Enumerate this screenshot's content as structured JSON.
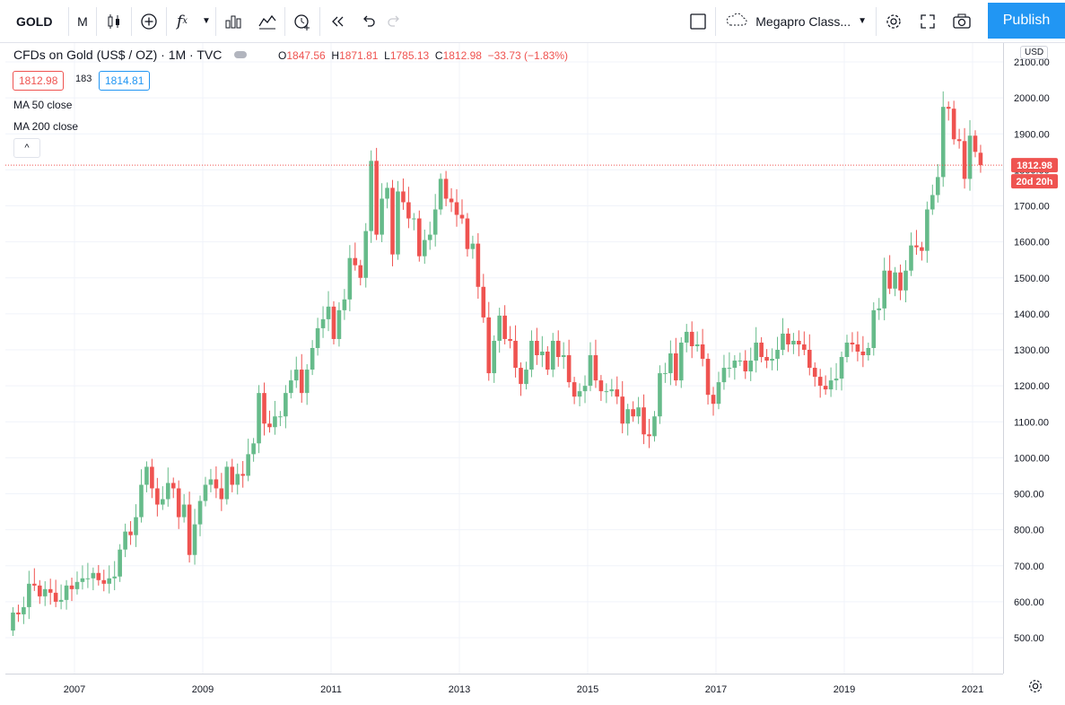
{
  "toolbar": {
    "symbol": "GOLD",
    "interval": "M",
    "icons": [
      "candles-icon",
      "plus-circle-icon",
      "fx-icon",
      "chevron-down-icon",
      "bars-icon",
      "area-icon",
      "alert-icon",
      "replay-icon",
      "undo-icon",
      "redo-icon",
      "square-icon",
      "cloud-icon",
      "gear-icon",
      "fullscreen-icon",
      "camera-icon"
    ],
    "layout_name": "Megapro Class...",
    "publish_label": "Publish"
  },
  "legend": {
    "title": "CFDs on Gold (US$ / OZ) · 1M · TVC",
    "o_key": "O",
    "o_val": "1847.56",
    "h_key": "H",
    "h_val": "1871.81",
    "l_key": "L",
    "l_val": "1785.13",
    "c_key": "C",
    "c_val": "1812.98",
    "change": "−33.73 (−1.83%)",
    "bid": "1812.98",
    "spread": "183",
    "ask": "1814.81",
    "ma1": "MA 50 close",
    "ma2": "MA 200 close",
    "collapse": "^"
  },
  "price_tag": {
    "value": "1812.98",
    "countdown": "20d 20h"
  },
  "currency": "USD",
  "colors": {
    "up": "#26a69a",
    "up_body": "#66bb8a",
    "down": "#ef5350",
    "accent": "#2196f3",
    "grid": "#f0f3fa"
  },
  "chart_data": {
    "type": "candlestick",
    "title": "CFDs on Gold (US$ / OZ) · 1M · TVC",
    "ylim": [
      400,
      2150
    ],
    "y_ticks": [
      500,
      600,
      700,
      800,
      900,
      1000,
      1100,
      1200,
      1300,
      1400,
      1500,
      1600,
      1700,
      1800,
      1900,
      2000,
      2100
    ],
    "y_tick_labels": [
      "500.00",
      "600.00",
      "700.00",
      "800.00",
      "900.00",
      "1000.00",
      "1100.00",
      "1200.00",
      "1300.00",
      "1400.00",
      "1500.00",
      "1600.00",
      "1700.00",
      "1800.00",
      "1900.00",
      "2000.00",
      "2100.00"
    ],
    "x_ticks": [
      "2007",
      "2009",
      "2011",
      "2013",
      "2015",
      "2017",
      "2019",
      "2021"
    ],
    "x_start": "2006-01",
    "last_price": 1812.98,
    "closes": [
      570,
      565,
      585,
      650,
      645,
      615,
      635,
      625,
      600,
      605,
      645,
      635,
      655,
      665,
      665,
      680,
      660,
      650,
      665,
      670,
      745,
      795,
      785,
      835,
      925,
      975,
      915,
      870,
      885,
      930,
      915,
      835,
      870,
      730,
      815,
      880,
      925,
      940,
      915,
      885,
      975,
      925,
      955,
      950,
      1010,
      1040,
      1180,
      1095,
      1085,
      1115,
      1115,
      1180,
      1215,
      1245,
      1180,
      1245,
      1305,
      1360,
      1385,
      1420,
      1330,
      1410,
      1440,
      1555,
      1535,
      1500,
      1630,
      1825,
      1620,
      1720,
      1750,
      1565,
      1740,
      1710,
      1665,
      1665,
      1560,
      1605,
      1620,
      1690,
      1775,
      1720,
      1710,
      1675,
      1665,
      1580,
      1595,
      1475,
      1390,
      1235,
      1325,
      1395,
      1330,
      1325,
      1250,
      1205,
      1245,
      1325,
      1285,
      1295,
      1245,
      1325,
      1280,
      1285,
      1210,
      1170,
      1185,
      1200,
      1285,
      1215,
      1185,
      1185,
      1190,
      1170,
      1095,
      1135,
      1115,
      1140,
      1065,
      1060,
      1115,
      1235,
      1235,
      1290,
      1215,
      1320,
      1350,
      1310,
      1315,
      1275,
      1175,
      1150,
      1210,
      1250,
      1250,
      1270,
      1270,
      1240,
      1270,
      1320,
      1280,
      1270,
      1275,
      1300,
      1345,
      1315,
      1325,
      1315,
      1300,
      1250,
      1225,
      1200,
      1190,
      1215,
      1220,
      1280,
      1320,
      1315,
      1295,
      1285,
      1305,
      1410,
      1415,
      1520,
      1470,
      1515,
      1465,
      1520,
      1590,
      1585,
      1575,
      1690,
      1730,
      1780,
      1975,
      1970,
      1885,
      1880,
      1775,
      1895,
      1850,
      1812.98
    ],
    "opens": [
      520,
      570,
      565,
      585,
      650,
      645,
      615,
      635,
      625,
      600,
      605,
      645,
      635,
      655,
      665,
      665,
      680,
      660,
      650,
      665,
      670,
      745,
      795,
      785,
      835,
      925,
      975,
      915,
      870,
      885,
      930,
      915,
      835,
      870,
      730,
      815,
      880,
      925,
      940,
      915,
      885,
      975,
      925,
      955,
      950,
      1010,
      1040,
      1180,
      1095,
      1085,
      1115,
      1115,
      1180,
      1215,
      1245,
      1180,
      1245,
      1305,
      1360,
      1385,
      1420,
      1330,
      1410,
      1440,
      1555,
      1535,
      1500,
      1630,
      1825,
      1620,
      1720,
      1750,
      1565,
      1740,
      1710,
      1665,
      1665,
      1560,
      1605,
      1620,
      1690,
      1775,
      1720,
      1710,
      1675,
      1665,
      1580,
      1595,
      1475,
      1390,
      1235,
      1325,
      1395,
      1330,
      1325,
      1250,
      1205,
      1245,
      1325,
      1285,
      1295,
      1245,
      1325,
      1280,
      1285,
      1210,
      1170,
      1185,
      1200,
      1285,
      1215,
      1185,
      1185,
      1190,
      1170,
      1095,
      1135,
      1115,
      1140,
      1065,
      1060,
      1115,
      1235,
      1235,
      1290,
      1215,
      1320,
      1350,
      1310,
      1315,
      1275,
      1175,
      1150,
      1210,
      1250,
      1250,
      1270,
      1270,
      1240,
      1270,
      1320,
      1280,
      1270,
      1275,
      1300,
      1345,
      1315,
      1325,
      1315,
      1300,
      1250,
      1225,
      1200,
      1190,
      1215,
      1220,
      1280,
      1320,
      1315,
      1295,
      1285,
      1305,
      1410,
      1415,
      1520,
      1470,
      1515,
      1465,
      1520,
      1590,
      1585,
      1575,
      1690,
      1730,
      1780,
      1975,
      1970,
      1885,
      1880,
      1775,
      1895,
      1847.56
    ]
  }
}
